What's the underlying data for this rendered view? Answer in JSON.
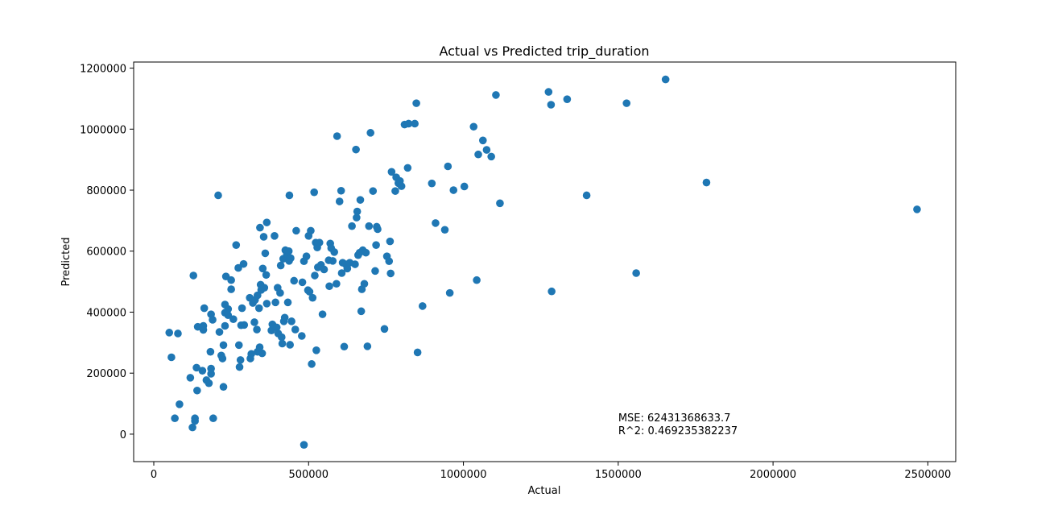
{
  "chart_data": {
    "type": "scatter",
    "title": "Actual vs Predicted trip_duration",
    "xlabel": "Actual",
    "ylabel": "Predicted",
    "xlim": [
      -65000,
      2590000
    ],
    "ylim": [
      -90000,
      1220000
    ],
    "xticks": [
      0,
      500000,
      1000000,
      1500000,
      2000000,
      2500000
    ],
    "xtick_labels": [
      "0",
      "500000",
      "1000000",
      "1500000",
      "2000000",
      "2500000"
    ],
    "yticks": [
      0,
      200000,
      400000,
      600000,
      800000,
      1000000,
      1200000
    ],
    "ytick_labels": [
      "0",
      "200000",
      "400000",
      "600000",
      "800000",
      "1000000",
      "1200000"
    ],
    "grid": false,
    "point_color": "#1f77b4",
    "annotations": [
      "MSE: 62431368633.7",
      "R^2: 0.469235382237"
    ],
    "annotation_xy": [
      1500000,
      0
    ],
    "points": [
      [
        50000,
        333000
      ],
      [
        57000,
        252000
      ],
      [
        68000,
        52000
      ],
      [
        78000,
        330000
      ],
      [
        83000,
        98000
      ],
      [
        118000,
        185000
      ],
      [
        125000,
        22000
      ],
      [
        128000,
        520000
      ],
      [
        133000,
        43000
      ],
      [
        133000,
        52000
      ],
      [
        138000,
        218000
      ],
      [
        140000,
        143000
      ],
      [
        142000,
        352000
      ],
      [
        157000,
        208000
      ],
      [
        160000,
        342000
      ],
      [
        160000,
        355000
      ],
      [
        163000,
        413000
      ],
      [
        170000,
        177000
      ],
      [
        178000,
        167000
      ],
      [
        183000,
        270000
      ],
      [
        185000,
        198000
      ],
      [
        185000,
        215000
      ],
      [
        185000,
        393000
      ],
      [
        190000,
        375000
      ],
      [
        192000,
        52000
      ],
      [
        208000,
        783000
      ],
      [
        212000,
        335000
      ],
      [
        218000,
        258000
      ],
      [
        222000,
        248000
      ],
      [
        225000,
        292000
      ],
      [
        225000,
        155000
      ],
      [
        230000,
        355000
      ],
      [
        230000,
        398000
      ],
      [
        230000,
        425000
      ],
      [
        233000,
        517000
      ],
      [
        240000,
        410000
      ],
      [
        240000,
        390000
      ],
      [
        250000,
        475000
      ],
      [
        250000,
        505000
      ],
      [
        257000,
        377000
      ],
      [
        266000,
        620000
      ],
      [
        273000,
        545000
      ],
      [
        275000,
        292000
      ],
      [
        277000,
        220000
      ],
      [
        280000,
        243000
      ],
      [
        282000,
        357000
      ],
      [
        285000,
        413000
      ],
      [
        290000,
        558000
      ],
      [
        292000,
        358000
      ],
      [
        310000,
        447000
      ],
      [
        312000,
        248000
      ],
      [
        315000,
        263000
      ],
      [
        320000,
        430000
      ],
      [
        325000,
        367000
      ],
      [
        327000,
        440000
      ],
      [
        333000,
        343000
      ],
      [
        335000,
        270000
      ],
      [
        335000,
        455000
      ],
      [
        340000,
        413000
      ],
      [
        342000,
        285000
      ],
      [
        343000,
        677000
      ],
      [
        345000,
        490000
      ],
      [
        347000,
        473000
      ],
      [
        350000,
        265000
      ],
      [
        352000,
        543000
      ],
      [
        355000,
        647000
      ],
      [
        357000,
        480000
      ],
      [
        360000,
        593000
      ],
      [
        363000,
        522000
      ],
      [
        365000,
        428000
      ],
      [
        365000,
        694000
      ],
      [
        380000,
        340000
      ],
      [
        383000,
        360000
      ],
      [
        390000,
        650000
      ],
      [
        393000,
        432000
      ],
      [
        397000,
        350000
      ],
      [
        400000,
        480000
      ],
      [
        402000,
        330000
      ],
      [
        408000,
        463000
      ],
      [
        410000,
        553000
      ],
      [
        413000,
        318000
      ],
      [
        415000,
        297000
      ],
      [
        418000,
        575000
      ],
      [
        420000,
        370000
      ],
      [
        423000,
        382000
      ],
      [
        425000,
        603000
      ],
      [
        430000,
        590000
      ],
      [
        433000,
        432000
      ],
      [
        436000,
        600000
      ],
      [
        437000,
        568000
      ],
      [
        438000,
        783000
      ],
      [
        440000,
        293000
      ],
      [
        442000,
        577000
      ],
      [
        445000,
        370000
      ],
      [
        453000,
        503000
      ],
      [
        457000,
        343000
      ],
      [
        460000,
        667000
      ],
      [
        478000,
        322000
      ],
      [
        480000,
        498000
      ],
      [
        485000,
        567000
      ],
      [
        485000,
        -35000
      ],
      [
        493000,
        583000
      ],
      [
        498000,
        472000
      ],
      [
        500000,
        650000
      ],
      [
        503000,
        467000
      ],
      [
        507000,
        667000
      ],
      [
        510000,
        230000
      ],
      [
        513000,
        447000
      ],
      [
        518000,
        793000
      ],
      [
        520000,
        520000
      ],
      [
        523000,
        628000
      ],
      [
        525000,
        275000
      ],
      [
        528000,
        612000
      ],
      [
        530000,
        547000
      ],
      [
        535000,
        628000
      ],
      [
        540000,
        555000
      ],
      [
        545000,
        393000
      ],
      [
        550000,
        540000
      ],
      [
        565000,
        570000
      ],
      [
        567000,
        485000
      ],
      [
        570000,
        625000
      ],
      [
        573000,
        610000
      ],
      [
        578000,
        568000
      ],
      [
        583000,
        597000
      ],
      [
        590000,
        493000
      ],
      [
        592000,
        977000
      ],
      [
        600000,
        763000
      ],
      [
        605000,
        798000
      ],
      [
        607000,
        528000
      ],
      [
        610000,
        562000
      ],
      [
        615000,
        287000
      ],
      [
        620000,
        557000
      ],
      [
        625000,
        543000
      ],
      [
        633000,
        562000
      ],
      [
        640000,
        682000
      ],
      [
        650000,
        557000
      ],
      [
        653000,
        933000
      ],
      [
        655000,
        710000
      ],
      [
        657000,
        730000
      ],
      [
        660000,
        587000
      ],
      [
        665000,
        595000
      ],
      [
        667000,
        768000
      ],
      [
        670000,
        403000
      ],
      [
        672000,
        475000
      ],
      [
        675000,
        603000
      ],
      [
        680000,
        493000
      ],
      [
        685000,
        595000
      ],
      [
        690000,
        288000
      ],
      [
        695000,
        682000
      ],
      [
        700000,
        988000
      ],
      [
        708000,
        797000
      ],
      [
        715000,
        535000
      ],
      [
        718000,
        620000
      ],
      [
        720000,
        680000
      ],
      [
        723000,
        672000
      ],
      [
        745000,
        345000
      ],
      [
        753000,
        583000
      ],
      [
        760000,
        567000
      ],
      [
        763000,
        632000
      ],
      [
        765000,
        527000
      ],
      [
        768000,
        860000
      ],
      [
        780000,
        797000
      ],
      [
        783000,
        842000
      ],
      [
        790000,
        823000
      ],
      [
        795000,
        830000
      ],
      [
        800000,
        813000
      ],
      [
        810000,
        1015000
      ],
      [
        820000,
        873000
      ],
      [
        823000,
        1018000
      ],
      [
        843000,
        1018000
      ],
      [
        848000,
        1085000
      ],
      [
        852000,
        268000
      ],
      [
        868000,
        420000
      ],
      [
        898000,
        822000
      ],
      [
        910000,
        692000
      ],
      [
        940000,
        670000
      ],
      [
        950000,
        878000
      ],
      [
        956000,
        463000
      ],
      [
        968000,
        800000
      ],
      [
        1003000,
        812000
      ],
      [
        1033000,
        1008000
      ],
      [
        1043000,
        505000
      ],
      [
        1048000,
        917000
      ],
      [
        1063000,
        963000
      ],
      [
        1075000,
        932000
      ],
      [
        1090000,
        910000
      ],
      [
        1105000,
        1112000
      ],
      [
        1118000,
        757000
      ],
      [
        1275000,
        1122000
      ],
      [
        1283000,
        1080000
      ],
      [
        1285000,
        468000
      ],
      [
        1335000,
        1098000
      ],
      [
        1398000,
        783000
      ],
      [
        1527000,
        1085000
      ],
      [
        1558000,
        528000
      ],
      [
        1653000,
        1163000
      ],
      [
        1785000,
        825000
      ],
      [
        2465000,
        737000
      ]
    ]
  }
}
